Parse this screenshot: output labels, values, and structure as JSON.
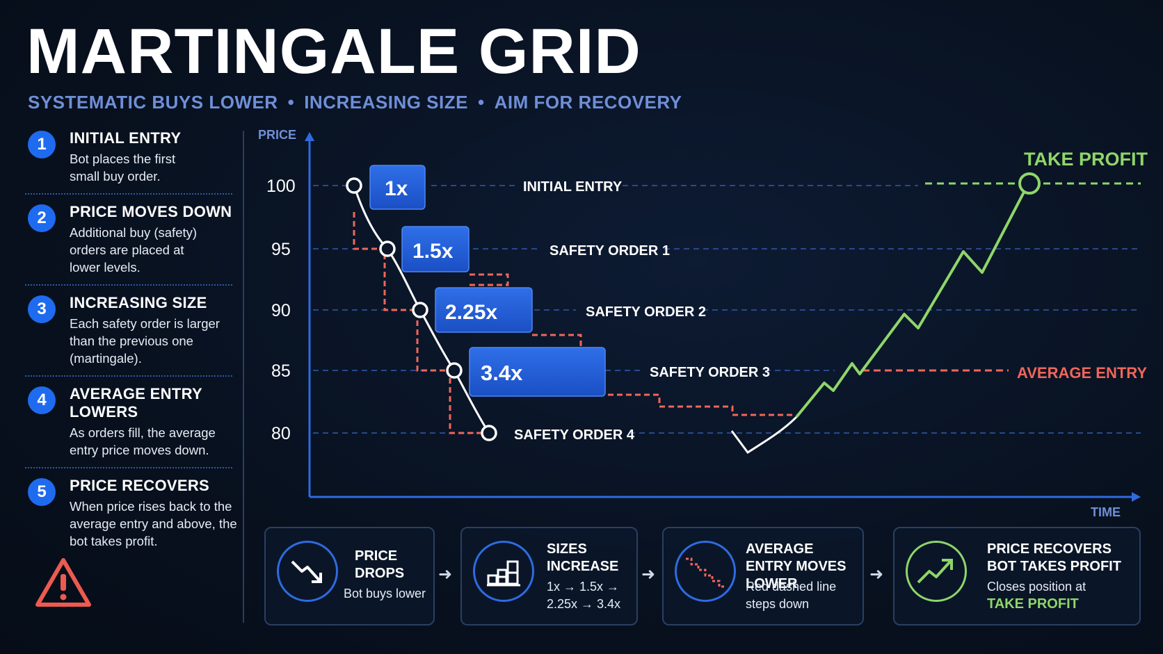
{
  "title": "MARTINGALE GRID",
  "subtitle": {
    "part1": "SYSTEMATIC BUYS LOWER",
    "sep": "•",
    "part2": "INCREASING SIZE",
    "part3": "AIM FOR RECOVERY"
  },
  "steps": [
    {
      "num": "1",
      "title": "INITIAL ENTRY",
      "desc": "Bot places the first small buy order."
    },
    {
      "num": "2",
      "title": "PRICE MOVES DOWN",
      "desc": "Additional buy (safety) orders are placed at lower levels."
    },
    {
      "num": "3",
      "title": "INCREASING SIZE",
      "desc": "Each safety order is larger than the previous one (martingale)."
    },
    {
      "num": "4",
      "title": "AVERAGE ENTRY LOWERS",
      "desc": "As orders fill, the average entry price moves down."
    },
    {
      "num": "5",
      "title": "PRICE RECOVERS",
      "desc": "When price rises back to the average entry and above, the bot takes profit."
    }
  ],
  "chart": {
    "y_axis_label": "PRICE",
    "x_axis_label": "TIME",
    "y_ticks": [
      "100",
      "95",
      "90",
      "85",
      "80"
    ],
    "orders": [
      {
        "size": "1x",
        "label": "INITIAL ENTRY"
      },
      {
        "size": "1.5x",
        "label": "SAFETY ORDER 1"
      },
      {
        "size": "2.25x",
        "label": "SAFETY ORDER 2"
      },
      {
        "size": "3.4x",
        "label": "SAFETY ORDER 3"
      },
      {
        "size": "",
        "label": "SAFETY ORDER 4"
      }
    ],
    "take_profit_label": "TAKE PROFIT",
    "average_entry_label": "AVERAGE ENTRY"
  },
  "flow": [
    {
      "title": "PRICE DROPS",
      "desc": "Bot buys lower",
      "icon": "trend-down-icon"
    },
    {
      "title": "SIZES INCREASE",
      "desc": "1x → 1.5x → 2.25x → 3.4x",
      "icon": "bar-blocks-icon"
    },
    {
      "title": "AVERAGE ENTRY MOVES LOWER",
      "desc": "Red dashed line steps down",
      "icon": "stepdown-icon"
    },
    {
      "title": "PRICE RECOVERS BOT TAKES PROFIT",
      "desc": "Closes position at",
      "highlight": "TAKE PROFIT",
      "icon": "trend-up-icon"
    }
  ],
  "flow_arrow": "➜",
  "colors": {
    "accent_blue": "#1f6bf0",
    "take_profit_green": "#8fd66a",
    "average_entry_red": "#f0665a",
    "subtitle_blue": "#6f8fd8"
  }
}
